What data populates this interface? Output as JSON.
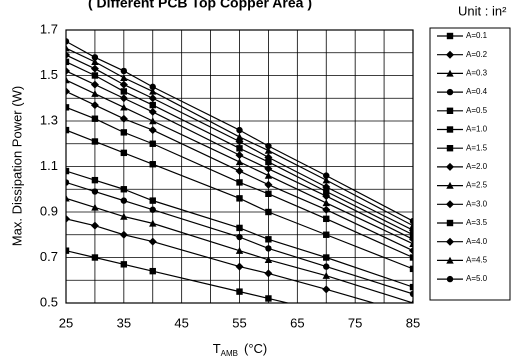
{
  "chart_data": {
    "type": "line",
    "title": "( Different PCB Top Copper Area )",
    "unit_note": "Unit : in²",
    "y_label": "Max. Dissipation Power (W)",
    "x_label": "T",
    "x_label_sub": "AMB",
    "x_label_unit": "(°C)",
    "x": [
      25,
      30,
      35,
      40,
      55,
      60,
      70,
      85
    ],
    "xlim": [
      25,
      85
    ],
    "xticks": [
      25,
      35,
      45,
      55,
      65,
      75,
      85
    ],
    "x_minor_ticks": [
      30,
      40,
      50,
      60,
      70,
      80
    ],
    "ylim": [
      0.5,
      1.7
    ],
    "yticks": [
      0.5,
      0.7,
      0.9,
      1.1,
      1.3,
      1.5,
      1.7
    ],
    "y_minor_ticks": [
      0.6,
      0.8,
      1.0,
      1.2,
      1.4,
      1.6
    ],
    "grid": true,
    "color": "#000000",
    "series": [
      {
        "name": "A=0.1",
        "marker": "square",
        "values": [
          0.73,
          0.7,
          0.67,
          0.64,
          0.55,
          0.52,
          0.46,
          0.37
        ]
      },
      {
        "name": "A=0.2",
        "marker": "diamond",
        "values": [
          0.87,
          0.84,
          0.8,
          0.77,
          0.66,
          0.63,
          0.56,
          0.45
        ]
      },
      {
        "name": "A=0.3",
        "marker": "triangle",
        "values": [
          0.96,
          0.92,
          0.88,
          0.85,
          0.73,
          0.69,
          0.62,
          0.5
        ]
      },
      {
        "name": "A=0.4",
        "marker": "circle",
        "values": [
          1.03,
          0.99,
          0.95,
          0.91,
          0.79,
          0.74,
          0.66,
          0.54
        ]
      },
      {
        "name": "A=0.5",
        "marker": "square",
        "values": [
          1.08,
          1.04,
          1.0,
          0.95,
          0.83,
          0.78,
          0.7,
          0.57
        ]
      },
      {
        "name": "A=1.0",
        "marker": "square",
        "values": [
          1.26,
          1.21,
          1.16,
          1.11,
          0.96,
          0.9,
          0.8,
          0.65
        ]
      },
      {
        "name": "A=1.5",
        "marker": "square",
        "values": [
          1.36,
          1.31,
          1.25,
          1.2,
          1.03,
          0.98,
          0.87,
          0.7
        ]
      },
      {
        "name": "A=2.0",
        "marker": "diamond",
        "values": [
          1.43,
          1.37,
          1.31,
          1.26,
          1.08,
          1.02,
          0.91,
          0.73
        ]
      },
      {
        "name": "A=2.5",
        "marker": "triangle",
        "values": [
          1.48,
          1.42,
          1.36,
          1.3,
          1.12,
          1.06,
          0.94,
          0.76
        ]
      },
      {
        "name": "A=3.0",
        "marker": "diamond",
        "values": [
          1.52,
          1.46,
          1.4,
          1.34,
          1.15,
          1.09,
          0.97,
          0.78
        ]
      },
      {
        "name": "A=3.5",
        "marker": "square",
        "values": [
          1.56,
          1.5,
          1.43,
          1.37,
          1.18,
          1.12,
          0.99,
          0.8
        ]
      },
      {
        "name": "A=4.0",
        "marker": "diamond",
        "values": [
          1.59,
          1.53,
          1.46,
          1.4,
          1.21,
          1.14,
          1.01,
          0.82
        ]
      },
      {
        "name": "A=4.5",
        "marker": "triangle",
        "values": [
          1.62,
          1.56,
          1.49,
          1.43,
          1.23,
          1.17,
          1.04,
          0.84
        ]
      },
      {
        "name": "A=5.0",
        "marker": "circle",
        "values": [
          1.65,
          1.58,
          1.52,
          1.45,
          1.26,
          1.19,
          1.06,
          0.86
        ]
      }
    ]
  }
}
